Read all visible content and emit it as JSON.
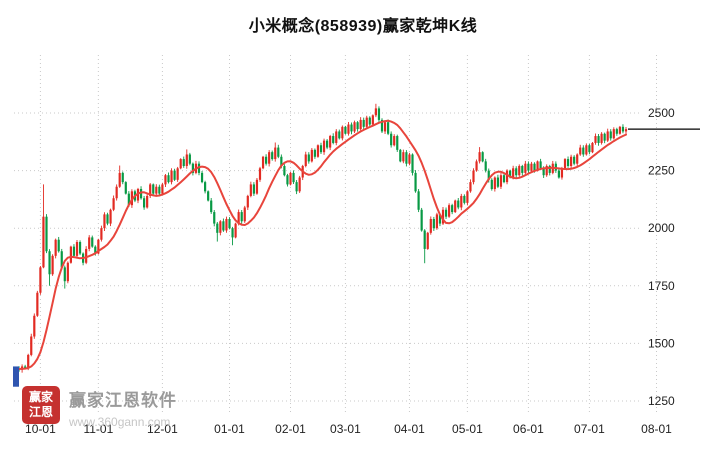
{
  "title": "小米概念(858939)赢家乾坤K线",
  "watermark": {
    "logo_line1": "赢家",
    "logo_line2": "江恩",
    "name": "赢家江恩软件",
    "url": "www.360gann.com"
  },
  "colors": {
    "up": "#e22a22",
    "down": "#089944",
    "ma": "#e8453c",
    "grid": "#c9c9c9",
    "axis_text": "#222222",
    "last_price_line": "#000000",
    "start_marker": "#2f55b0",
    "watermark_red": "#c5312f"
  },
  "chart_data": {
    "type": "candlestick",
    "title": "小米概念(858939)赢家乾坤K线",
    "xlabel": "",
    "ylabel": "",
    "legend": [],
    "grid": "dotted",
    "ylabel_side": "right",
    "y_ticks": [
      1250,
      1500,
      1750,
      2000,
      2250,
      2500
    ],
    "x_ticks": [
      {
        "label": "10-01",
        "index": 8
      },
      {
        "label": "11-01",
        "index": 27
      },
      {
        "label": "12-01",
        "index": 48
      },
      {
        "label": "01-01",
        "index": 70
      },
      {
        "label": "02-01",
        "index": 90
      },
      {
        "label": "03-01",
        "index": 108
      },
      {
        "label": "04-01",
        "index": 129
      },
      {
        "label": "05-01",
        "index": 148
      },
      {
        "label": "06-01",
        "index": 168
      },
      {
        "label": "07-01",
        "index": 188
      },
      {
        "label": "08-01",
        "index": 210
      }
    ],
    "total_slots": 211,
    "first_open": 1395,
    "closes": [
      1390,
      1385,
      1400,
      1395,
      1450,
      1530,
      1620,
      1720,
      1830,
      2050,
      1900,
      1800,
      1880,
      1950,
      1900,
      1830,
      1770,
      1850,
      1920,
      1880,
      1940,
      1890,
      1850,
      1910,
      1960,
      1920,
      1890,
      1950,
      2000,
      2060,
      2020,
      2080,
      2130,
      2180,
      2240,
      2200,
      2150,
      2100,
      2160,
      2120,
      2170,
      2130,
      2090,
      2140,
      2190,
      2150,
      2180,
      2150,
      2190,
      2230,
      2200,
      2250,
      2210,
      2260,
      2300,
      2270,
      2320,
      2280,
      2240,
      2280,
      2240,
      2200,
      2160,
      2120,
      2070,
      2020,
      1980,
      2030,
      1990,
      2040,
      2000,
      1960,
      2020,
      2070,
      2030,
      2090,
      2140,
      2190,
      2150,
      2210,
      2260,
      2310,
      2280,
      2330,
      2300,
      2350,
      2310,
      2270,
      2230,
      2190,
      2240,
      2200,
      2160,
      2220,
      2270,
      2320,
      2290,
      2340,
      2310,
      2360,
      2330,
      2380,
      2350,
      2400,
      2370,
      2420,
      2390,
      2440,
      2410,
      2450,
      2420,
      2460,
      2430,
      2470,
      2440,
      2480,
      2450,
      2490,
      2520,
      2470,
      2420,
      2460,
      2410,
      2360,
      2400,
      2340,
      2290,
      2330,
      2280,
      2320,
      2240,
      2160,
      2080,
      1990,
      1910,
      1980,
      2040,
      2000,
      2060,
      2020,
      2080,
      2050,
      2100,
      2070,
      2120,
      2090,
      2140,
      2110,
      2160,
      2200,
      2250,
      2290,
      2330,
      2290,
      2250,
      2210,
      2170,
      2220,
      2180,
      2230,
      2200,
      2250,
      2220,
      2260,
      2230,
      2270,
      2240,
      2280,
      2250,
      2280,
      2250,
      2290,
      2260,
      2230,
      2270,
      2240,
      2280,
      2250,
      2220,
      2260,
      2300,
      2270,
      2310,
      2280,
      2320,
      2350,
      2320,
      2360,
      2330,
      2370,
      2400,
      2370,
      2410,
      2380,
      2420,
      2390,
      2430,
      2410,
      2440,
      2420,
      2430
    ],
    "wick_overrides": {
      "9": {
        "high": 2190
      },
      "11": {
        "low": 1750
      },
      "16": {
        "low": 1738
      },
      "34": {
        "high": 2272
      },
      "56": {
        "high": 2342
      },
      "66": {
        "low": 1942
      },
      "71": {
        "low": 1926
      },
      "85": {
        "high": 2372
      },
      "118": {
        "high": 2540
      },
      "134": {
        "low": 1848
      },
      "152": {
        "high": 2352
      }
    },
    "start_marker": {
      "price_top": 1400,
      "price_bottom": 1312
    },
    "ma": {
      "window1": 8,
      "window2": 5
    },
    "last_price": 2430
  }
}
